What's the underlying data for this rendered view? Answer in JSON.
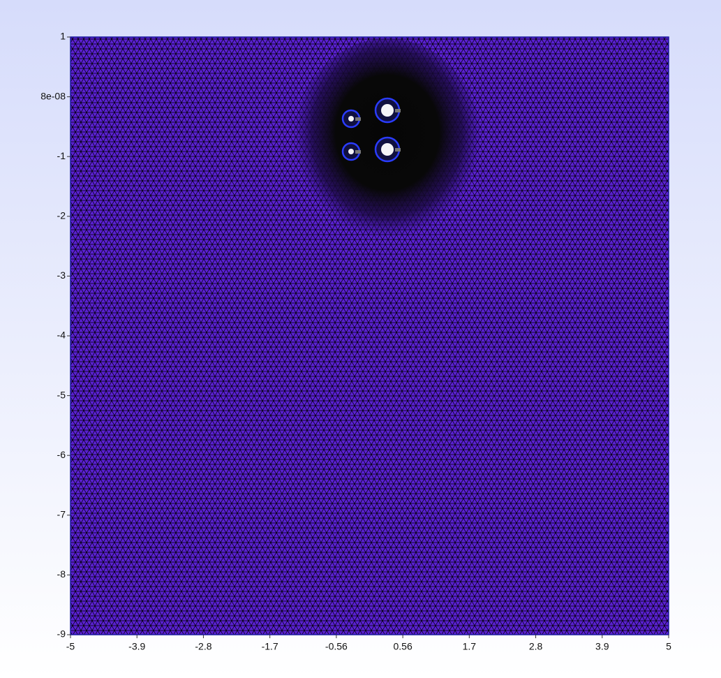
{
  "chart_data": {
    "type": "mesh",
    "xlim": [
      -5,
      5
    ],
    "ylim": [
      -9,
      1
    ],
    "xticks": [
      -5,
      {
        "value": -3.888889,
        "label": "-3.9"
      },
      {
        "value": -2.777778,
        "label": "-2.8"
      },
      {
        "value": -1.666667,
        "label": "-1.7"
      },
      {
        "value": -0.555556,
        "label": "-0.56"
      },
      {
        "value": 0.555556,
        "label": "0.56"
      },
      {
        "value": 1.666667,
        "label": "1.7"
      },
      {
        "value": 2.777778,
        "label": "2.8"
      },
      {
        "value": 3.888889,
        "label": "3.9"
      },
      5
    ],
    "yticks": [
      1,
      {
        "value": 8e-08,
        "label": "8e-08"
      },
      -1,
      -2,
      -3,
      -4,
      -5,
      -6,
      -7,
      -8,
      -9
    ],
    "color": "#5a20d2"
  }
}
